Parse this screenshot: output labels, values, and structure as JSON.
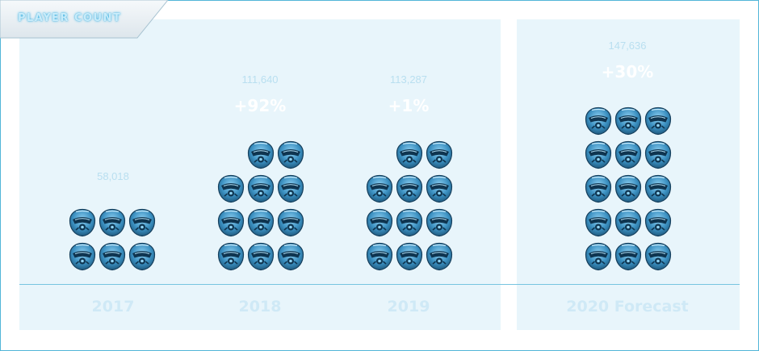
{
  "chart_data": {
    "type": "pictograph",
    "title": "PLAYER COUNT",
    "icon": "helmet-icon",
    "categories": [
      "2017",
      "2018",
      "2019",
      "2020 Forecast"
    ],
    "values": [
      58018,
      111640,
      113287,
      147636
    ],
    "value_labels": [
      "58,018",
      "111,640",
      "113,287",
      "147,636"
    ],
    "change_labels": [
      "",
      "+92%",
      "+1%",
      "+30%"
    ],
    "icon_counts": [
      6,
      11,
      11,
      15
    ],
    "colors": {
      "panel": "#e8f5fb",
      "border": "#52b6d8",
      "icon": "#3a8fc0",
      "change_text": "#ffffff",
      "value_text": "#b9dff0"
    }
  }
}
